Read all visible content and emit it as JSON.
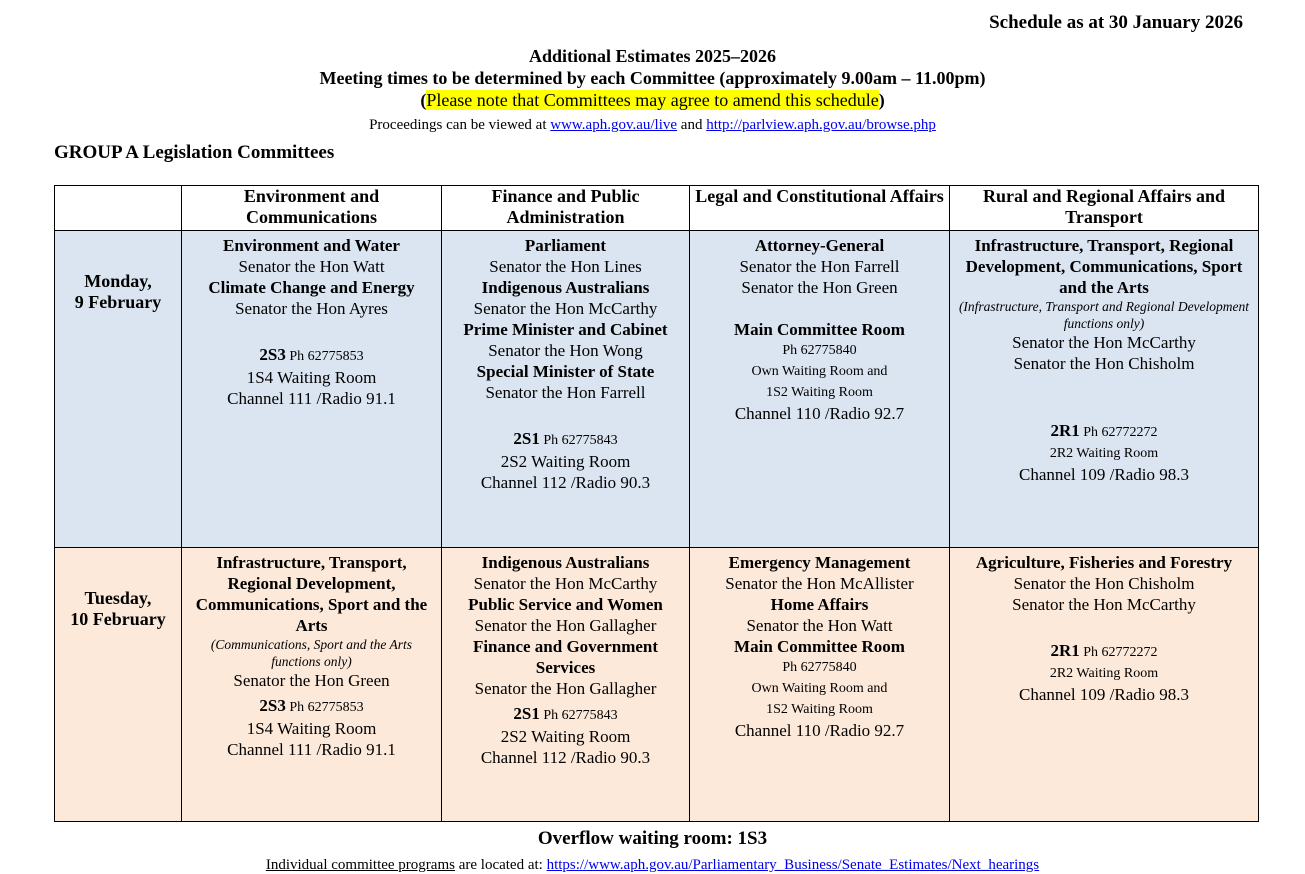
{
  "schedule_as_at": "Schedule as at 30 January 2026",
  "title": "Additional Estimates 2025–2026",
  "subtitle": "Meeting times to be determined by each Committee (approximately 9.00am – 11.00pm)",
  "note_open": "(",
  "note": "Please note that Committees may agree to amend this schedule",
  "note_close": ")",
  "proceedings": {
    "prefix": "Proceedings can be viewed at ",
    "link1": "www.aph.gov.au/live",
    "mid": " and ",
    "link2": "http://parlview.aph.gov.au/browse.php"
  },
  "group": "GROUP A Legislation Committees",
  "columns": [
    "Environment and Communications",
    "Finance and Public Administration",
    "Legal and Constitutional Affairs",
    "Rural and Regional Affairs and Transport"
  ],
  "colors": {
    "monday_bg": "#dbe5f1",
    "tuesday_bg": "#fde9d9",
    "highlight": "#ffff00"
  },
  "rows": [
    {
      "day": "Monday,",
      "date": "9 February",
      "cells": [
        [
          {
            "s": "b",
            "t": "Environment and Water"
          },
          {
            "s": "n",
            "t": "Senator the Hon Watt"
          },
          {
            "s": "b",
            "t": "Climate Change and Energy"
          },
          {
            "s": "n",
            "t": "Senator the Hon Ayres"
          },
          {
            "s": "gap"
          },
          {
            "s": "room",
            "t": "2S3",
            "ph": " Ph 62775853"
          },
          {
            "s": "n",
            "t": "1S4 Waiting Room"
          },
          {
            "s": "n",
            "t": "Channel 111 /Radio 91.1"
          }
        ],
        [
          {
            "s": "b",
            "t": "Parliament"
          },
          {
            "s": "n",
            "t": "Senator the Hon Lines"
          },
          {
            "s": "b",
            "t": "Indigenous Australians"
          },
          {
            "s": "n",
            "t": "Senator the Hon McCarthy"
          },
          {
            "s": "b",
            "t": "Prime Minister and Cabinet"
          },
          {
            "s": "n",
            "t": "Senator the Hon Wong"
          },
          {
            "s": "b",
            "t": "Special Minister of State"
          },
          {
            "s": "n",
            "t": "Senator the Hon Farrell"
          },
          {
            "s": "gap"
          },
          {
            "s": "room",
            "t": "2S1",
            "ph": " Ph 62775843"
          },
          {
            "s": "n",
            "t": "2S2 Waiting Room"
          },
          {
            "s": "n",
            "t": "Channel 112 /Radio 90.3"
          }
        ],
        [
          {
            "s": "b",
            "t": "Attorney-General"
          },
          {
            "s": "n",
            "t": "Senator the Hon Farrell"
          },
          {
            "s": "n",
            "t": "Senator the Hon Green"
          },
          {
            "s": "gap"
          },
          {
            "s": "b",
            "t": "Main Committee Room"
          },
          {
            "s": "sm",
            "t": "Ph 62775840"
          },
          {
            "s": "sm",
            "t": "Own Waiting Room and"
          },
          {
            "s": "sm",
            "t": "1S2 Waiting Room"
          },
          {
            "s": "n",
            "t": "Channel 110 /Radio 92.7"
          }
        ],
        [
          {
            "s": "b",
            "t": "Infrastructure, Transport, Regional Development, Communications, Sport and the Arts"
          },
          {
            "s": "i",
            "t": "(Infrastructure, Transport and Regional Development functions only)"
          },
          {
            "s": "n",
            "t": "Senator the Hon McCarthy"
          },
          {
            "s": "n",
            "t": "Senator the Hon Chisholm"
          },
          {
            "s": "gap"
          },
          {
            "s": "gap"
          },
          {
            "s": "room",
            "t": "2R1",
            "ph": " Ph 62772272"
          },
          {
            "s": "sm",
            "t": "2R2 Waiting Room"
          },
          {
            "s": "n",
            "t": "Channel 109 /Radio 98.3"
          }
        ]
      ]
    },
    {
      "day": "Tuesday,",
      "date": "10 February",
      "cells": [
        [
          {
            "s": "b",
            "t": "Infrastructure, Transport, Regional Development, Communications, Sport and the Arts"
          },
          {
            "s": "i",
            "t": "(Communications, Sport and the Arts functions only)"
          },
          {
            "s": "n",
            "t": "Senator the Hon Green"
          },
          {
            "s": "room",
            "t": "2S3",
            "ph": " Ph 62775853"
          },
          {
            "s": "n",
            "t": "1S4 Waiting Room"
          },
          {
            "s": "n",
            "t": "Channel 111 /Radio 91.1"
          }
        ],
        [
          {
            "s": "b",
            "t": "Indigenous Australians"
          },
          {
            "s": "n",
            "t": "Senator the Hon McCarthy"
          },
          {
            "s": "b",
            "t": "Public Service and Women"
          },
          {
            "s": "n",
            "t": "Senator the Hon Gallagher"
          },
          {
            "s": "b",
            "t": "Finance and Government Services"
          },
          {
            "s": "n",
            "t": "Senator the Hon Gallagher"
          },
          {
            "s": "room",
            "t": "2S1",
            "ph": " Ph 62775843"
          },
          {
            "s": "n",
            "t": "2S2 Waiting Room"
          },
          {
            "s": "n",
            "t": "Channel 112 /Radio 90.3"
          }
        ],
        [
          {
            "s": "b",
            "t": "Emergency Management"
          },
          {
            "s": "n",
            "t": "Senator the Hon McAllister"
          },
          {
            "s": "b",
            "t": "Home Affairs"
          },
          {
            "s": "n",
            "t": "Senator the Hon Watt"
          },
          {
            "s": "b",
            "t": "Main Committee Room"
          },
          {
            "s": "sm",
            "t": "Ph 62775840"
          },
          {
            "s": "sm",
            "t": "Own Waiting Room and"
          },
          {
            "s": "sm",
            "t": "1S2 Waiting Room"
          },
          {
            "s": "n",
            "t": "Channel 110 /Radio 92.7"
          }
        ],
        [
          {
            "s": "b",
            "t": "Agriculture, Fisheries and Forestry"
          },
          {
            "s": "n",
            "t": "Senator the Hon Chisholm"
          },
          {
            "s": "n",
            "t": "Senator the Hon McCarthy"
          },
          {
            "s": "gap"
          },
          {
            "s": "room",
            "t": "2R1",
            "ph": " Ph 62772272"
          },
          {
            "s": "sm",
            "t": "2R2 Waiting Room"
          },
          {
            "s": "n",
            "t": "Channel 109 /Radio 98.3"
          }
        ]
      ]
    }
  ],
  "overflow": "Overflow waiting room: 1S3",
  "footer": {
    "prefix": "Individual committee programs",
    "mid": " are located at: ",
    "link": "https://www.aph.gov.au/Parliamentary_Business/Senate_Estimates/Next_hearings"
  }
}
